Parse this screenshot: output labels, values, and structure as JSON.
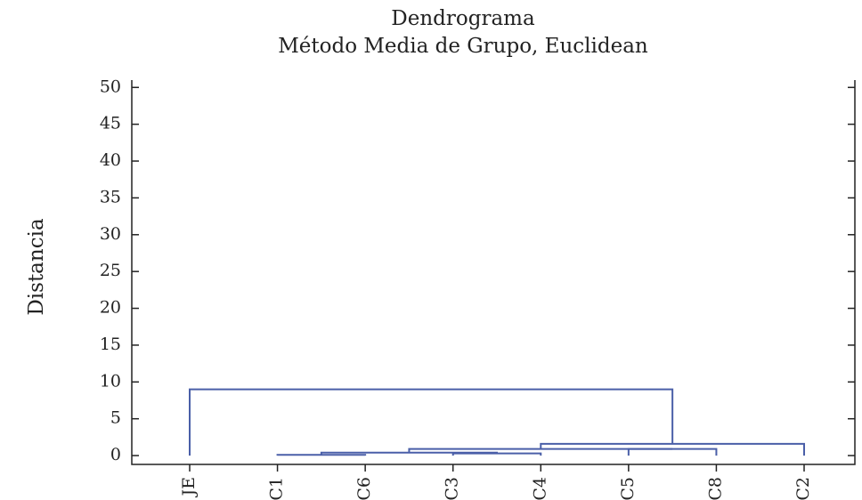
{
  "chart_data": {
    "type": "dendrogram",
    "title": "Dendrograma",
    "subtitle": "Método Media de Grupo, Euclidean",
    "y_label": "Distancia",
    "leaves": [
      "JE",
      "C1",
      "C6",
      "C3",
      "C4",
      "C5",
      "C8",
      "C2"
    ],
    "merges": [
      {
        "left": 1,
        "right": 2,
        "height": 0.1
      },
      {
        "left": 3,
        "right": 4,
        "height": 0.3
      },
      {
        "left": 8,
        "right": 9,
        "height": 0.4
      },
      {
        "left": 5,
        "right": 6,
        "height": 0.9
      },
      {
        "left": 10,
        "right": 11,
        "height": 0.9
      },
      {
        "left": 12,
        "right": 7,
        "height": 1.6
      },
      {
        "left": 0,
        "right": 13,
        "height": 9
      }
    ],
    "color": "#4a5fa8",
    "ylim": [
      -1.2,
      51
    ],
    "yticks": [
      0,
      5,
      10,
      15,
      20,
      25,
      30,
      35,
      40,
      45,
      50
    ]
  }
}
